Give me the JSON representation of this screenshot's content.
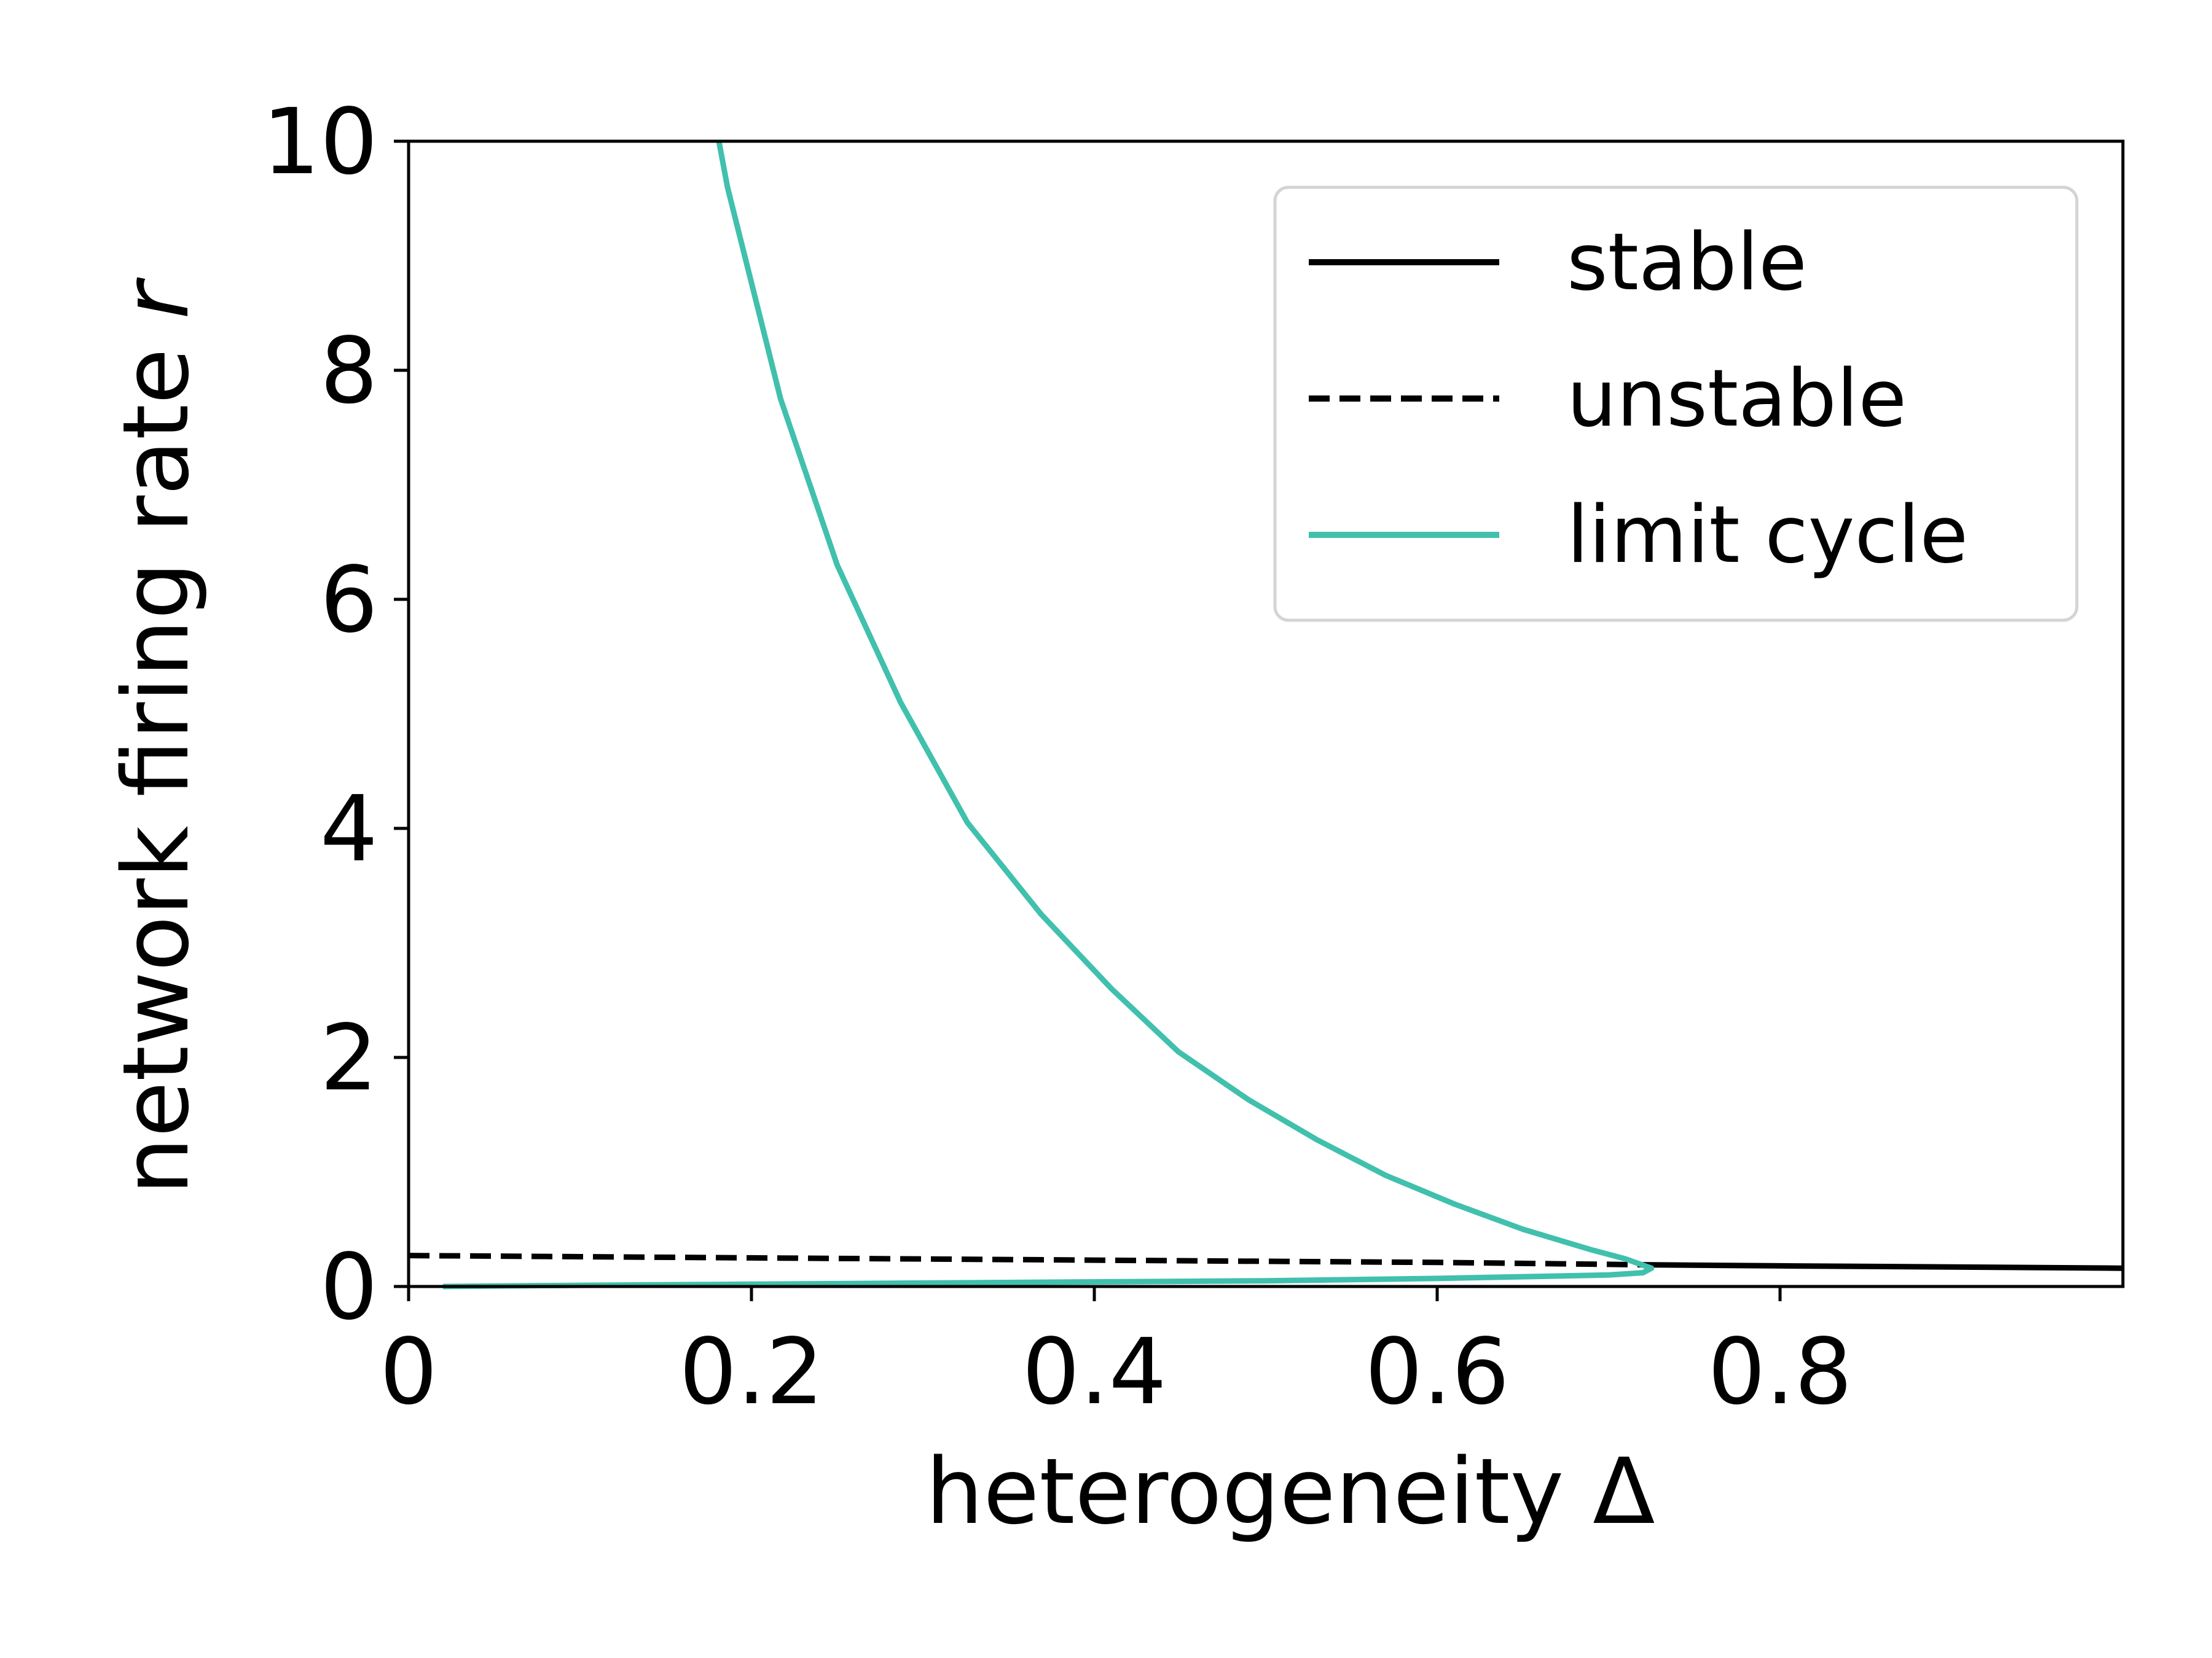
{
  "chart_data": {
    "type": "line",
    "xlabel": "heterogeneity Δ",
    "ylabel_main": "network firing rate ",
    "ylabel_var": "r",
    "xlim": [
      0,
      1.0
    ],
    "ylim": [
      0,
      10
    ],
    "xticks": [
      0,
      0.2,
      0.4,
      0.6,
      0.8
    ],
    "xtick_labels": [
      "0",
      "0.2",
      "0.4",
      "0.6",
      "0.8"
    ],
    "yticks": [
      0,
      2,
      4,
      6,
      8,
      10
    ],
    "ytick_labels": [
      "0",
      "2",
      "4",
      "6",
      "8",
      "10"
    ],
    "grid": false,
    "legend_position": "upper right",
    "series": [
      {
        "name": "stable",
        "color": "#000000",
        "style": "solid",
        "x": [
          0.72,
          0.8,
          0.9,
          1.0
        ],
        "y": [
          0.19,
          0.18,
          0.17,
          0.16
        ]
      },
      {
        "name": "unstable",
        "color": "#000000",
        "style": "dashed",
        "x": [
          0.0,
          0.1,
          0.2,
          0.3,
          0.4,
          0.5,
          0.6,
          0.72
        ],
        "y": [
          0.27,
          0.26,
          0.25,
          0.24,
          0.23,
          0.22,
          0.21,
          0.19
        ]
      },
      {
        "name": "limit cycle",
        "color": "#40c0ad",
        "style": "solid",
        "x": [
          0.181,
          0.186,
          0.217,
          0.25,
          0.287,
          0.326,
          0.369,
          0.41,
          0.449,
          0.49,
          0.53,
          0.57,
          0.61,
          0.65,
          0.69,
          0.71,
          0.725,
          0.72,
          0.7,
          0.6,
          0.5,
          0.4,
          0.3,
          0.2,
          0.1,
          0.02
        ],
        "y": [
          10.0,
          9.6,
          7.75,
          6.3,
          5.1,
          4.05,
          3.25,
          2.6,
          2.05,
          1.63,
          1.28,
          0.97,
          0.72,
          0.5,
          0.32,
          0.24,
          0.16,
          0.12,
          0.1,
          0.07,
          0.05,
          0.04,
          0.03,
          0.02,
          0.01,
          0.0
        ]
      }
    ]
  }
}
